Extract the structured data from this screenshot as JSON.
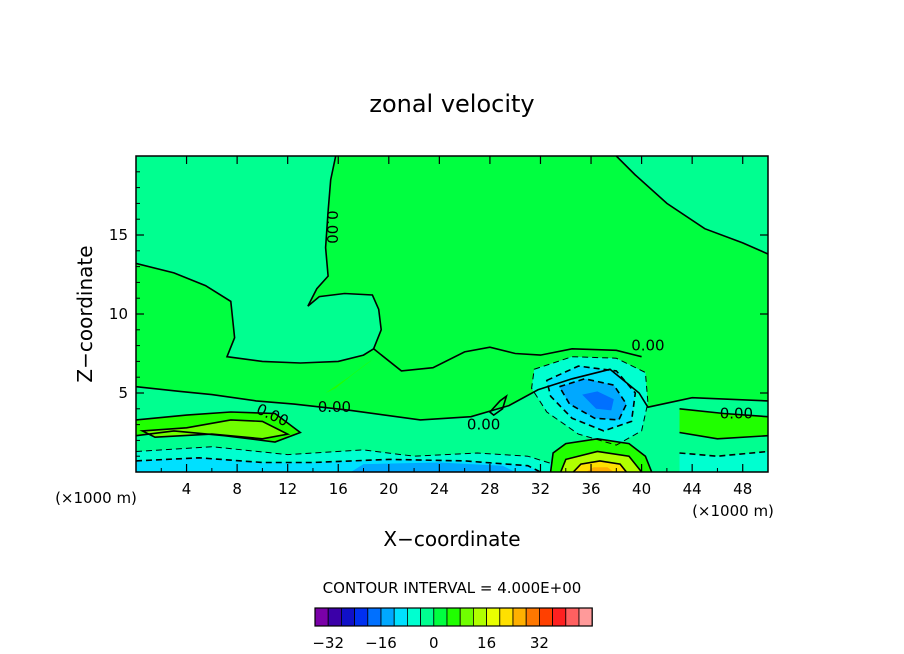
{
  "chart_data": {
    "type": "contour",
    "title": "zonal velocity",
    "xlabel": "X−coordinate",
    "ylabel": "Z−coordinate",
    "x_unit_left": "(×1000 m)",
    "x_unit_right": "(×1000 m)",
    "xlim": [
      0,
      50
    ],
    "ylim": [
      0,
      20
    ],
    "x_ticks": [
      4,
      8,
      12,
      16,
      20,
      24,
      28,
      32,
      36,
      40,
      44,
      48
    ],
    "y_ticks": [
      5,
      10,
      15
    ],
    "contour_interval_text": "CONTOUR INTERVAL = 4.000E+00",
    "contour_labels": [
      {
        "text": "0.00",
        "x": 15.5,
        "y": 15.5,
        "rotate": 90
      },
      {
        "text": "0.00",
        "x": 40.5,
        "y": 8.0,
        "rotate": 0
      },
      {
        "text": "0.00",
        "x": 47.5,
        "y": 3.7,
        "rotate": 0
      },
      {
        "text": "0.00",
        "x": 15.7,
        "y": 4.1,
        "rotate": 0
      },
      {
        "text": "0.00",
        "x": 27.5,
        "y": 3.0,
        "rotate": 0
      },
      {
        "text": "0.00",
        "x": 10.8,
        "y": 3.6,
        "rotate": 25
      }
    ],
    "features": [
      {
        "name": "negative core",
        "x": 36.5,
        "y": 4.5,
        "value": -20
      },
      {
        "name": "positive core",
        "x": 36.5,
        "y": 0.4,
        "value": 24
      },
      {
        "name": "near-surface negative band",
        "x": 24,
        "y": 0.4,
        "value": -12
      },
      {
        "name": "upper-level jet",
        "x": 10,
        "y": 3.0,
        "value": 12
      }
    ],
    "colorbar": {
      "tick_labels": [
        "−32",
        "−16",
        "0",
        "16",
        "32"
      ],
      "tick_values": [
        -32,
        -16,
        0,
        16,
        32
      ],
      "bins": [
        {
          "value": -36,
          "color": "#7a00a8"
        },
        {
          "value": -32,
          "color": "#3b00a8"
        },
        {
          "value": -28,
          "color": "#1010c8"
        },
        {
          "value": -24,
          "color": "#0030f0"
        },
        {
          "value": -20,
          "color": "#0070ff"
        },
        {
          "value": -16,
          "color": "#00a8ff"
        },
        {
          "value": -12,
          "color": "#00e0ff"
        },
        {
          "value": -8,
          "color": "#00ffd0"
        },
        {
          "value": -4,
          "color": "#00ff90"
        },
        {
          "value": 0,
          "color": "#00ff40"
        },
        {
          "value": 4,
          "color": "#20ff00"
        },
        {
          "value": 8,
          "color": "#70ff00"
        },
        {
          "value": 12,
          "color": "#b0ff00"
        },
        {
          "value": 16,
          "color": "#e8ff00"
        },
        {
          "value": 20,
          "color": "#ffe000"
        },
        {
          "value": 24,
          "color": "#ffb000"
        },
        {
          "value": 28,
          "color": "#ff7800"
        },
        {
          "value": 32,
          "color": "#ff4000"
        },
        {
          "value": 36,
          "color": "#ff2020"
        },
        {
          "value": 40,
          "color": "#ff6060"
        },
        {
          "value": 44,
          "color": "#ff9a9a"
        }
      ]
    }
  }
}
